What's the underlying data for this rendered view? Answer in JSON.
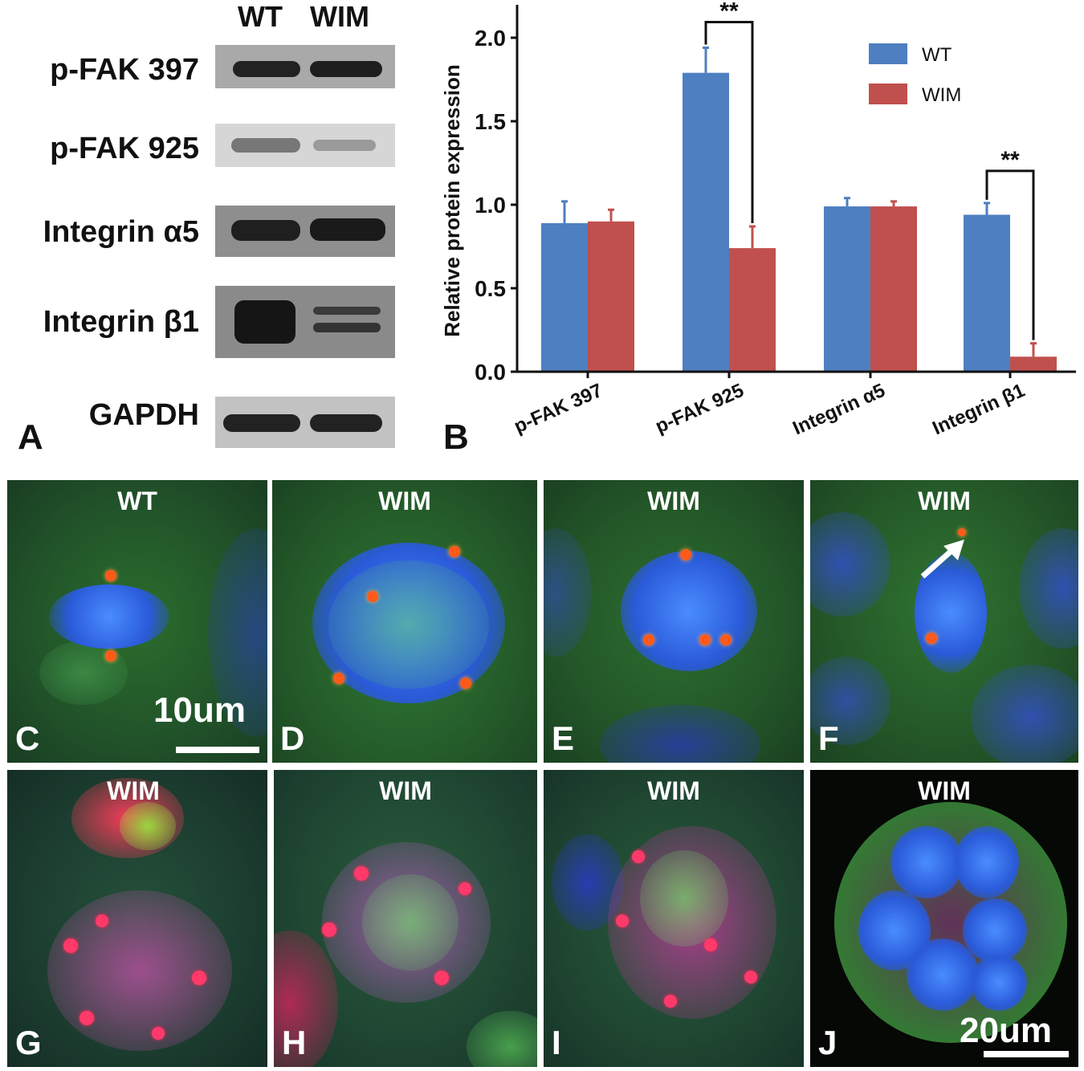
{
  "panel_a": {
    "letter": "A",
    "columns": [
      "WT",
      "WIM"
    ],
    "rows": [
      "p-FAK 397",
      "p-FAK 925",
      "Integrin α5",
      "Integrin β1",
      "GAPDH"
    ]
  },
  "chart_data": {
    "type": "bar",
    "letter": "B",
    "categories": [
      "p-FAK 397",
      "p-FAK 925",
      "Integrin α5",
      "Integrin β1"
    ],
    "series": [
      {
        "name": "WT",
        "values": [
          0.89,
          1.79,
          0.99,
          0.94
        ],
        "errors": [
          0.13,
          0.15,
          0.05,
          0.07
        ]
      },
      {
        "name": "WIM",
        "values": [
          0.9,
          0.74,
          0.99,
          0.09
        ],
        "errors": [
          0.07,
          0.13,
          0.03,
          0.08
        ]
      }
    ],
    "ylabel": "Relative protein expression",
    "ylim": [
      0,
      2.2
    ],
    "yticks": [
      "0.0",
      "0.5",
      "1.0",
      "1.5",
      "2.0"
    ],
    "significance": [
      {
        "category": "p-FAK 925",
        "label": "**"
      },
      {
        "category": "Integrin β1",
        "label": "**"
      }
    ],
    "colors": {
      "WT": "#4e7fc0",
      "WIM": "#c0504d"
    },
    "legend": "top-right"
  },
  "micrographs": [
    {
      "letter": "C",
      "condition": "WT"
    },
    {
      "letter": "D",
      "condition": "WIM"
    },
    {
      "letter": "E",
      "condition": "WIM"
    },
    {
      "letter": "F",
      "condition": "WIM"
    },
    {
      "letter": "G",
      "condition": "WIM"
    },
    {
      "letter": "H",
      "condition": "WIM"
    },
    {
      "letter": "I",
      "condition": "WIM"
    },
    {
      "letter": "J",
      "condition": "WIM"
    }
  ],
  "scale_bars": {
    "top": "10um",
    "bottom": "20um"
  }
}
